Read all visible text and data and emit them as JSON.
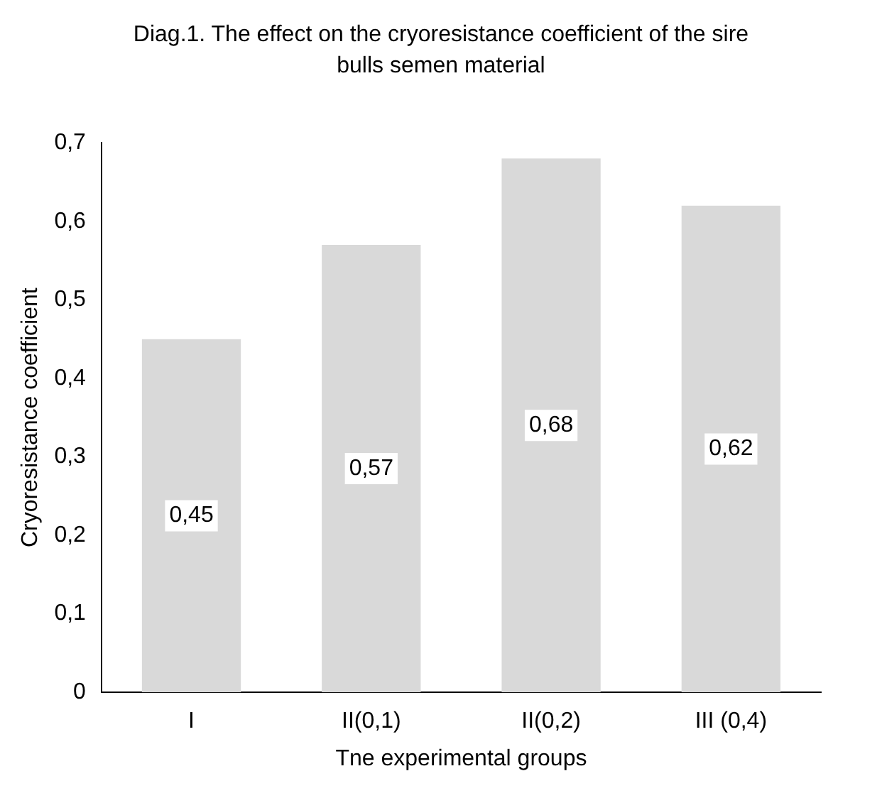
{
  "chart_data": {
    "type": "bar",
    "title": "Diag.1. The effect on the cryoresistance coefficient of the sire bulls semen material",
    "xlabel": "Tne experimental groups",
    "ylabel": "Cryoresistance coefficient",
    "categories": [
      "I",
      "II(0,1)",
      "II(0,2)",
      "III (0,4)"
    ],
    "values": [
      0.45,
      0.57,
      0.68,
      0.62
    ],
    "value_labels": [
      "0,45",
      "0,57",
      "0,68",
      "0,62"
    ],
    "color": "#d9d9d9",
    "ylim": [
      0,
      0.7
    ],
    "yticks": [
      {
        "value": 0,
        "label": "0"
      },
      {
        "value": 0.1,
        "label": "0,1"
      },
      {
        "value": 0.2,
        "label": "0,2"
      },
      {
        "value": 0.3,
        "label": "0,3"
      },
      {
        "value": 0.4,
        "label": "0,4"
      },
      {
        "value": 0.5,
        "label": "0,5"
      },
      {
        "value": 0.6,
        "label": "0,6"
      },
      {
        "value": 0.7,
        "label": "0,7"
      }
    ],
    "grid": false,
    "legend": false
  }
}
